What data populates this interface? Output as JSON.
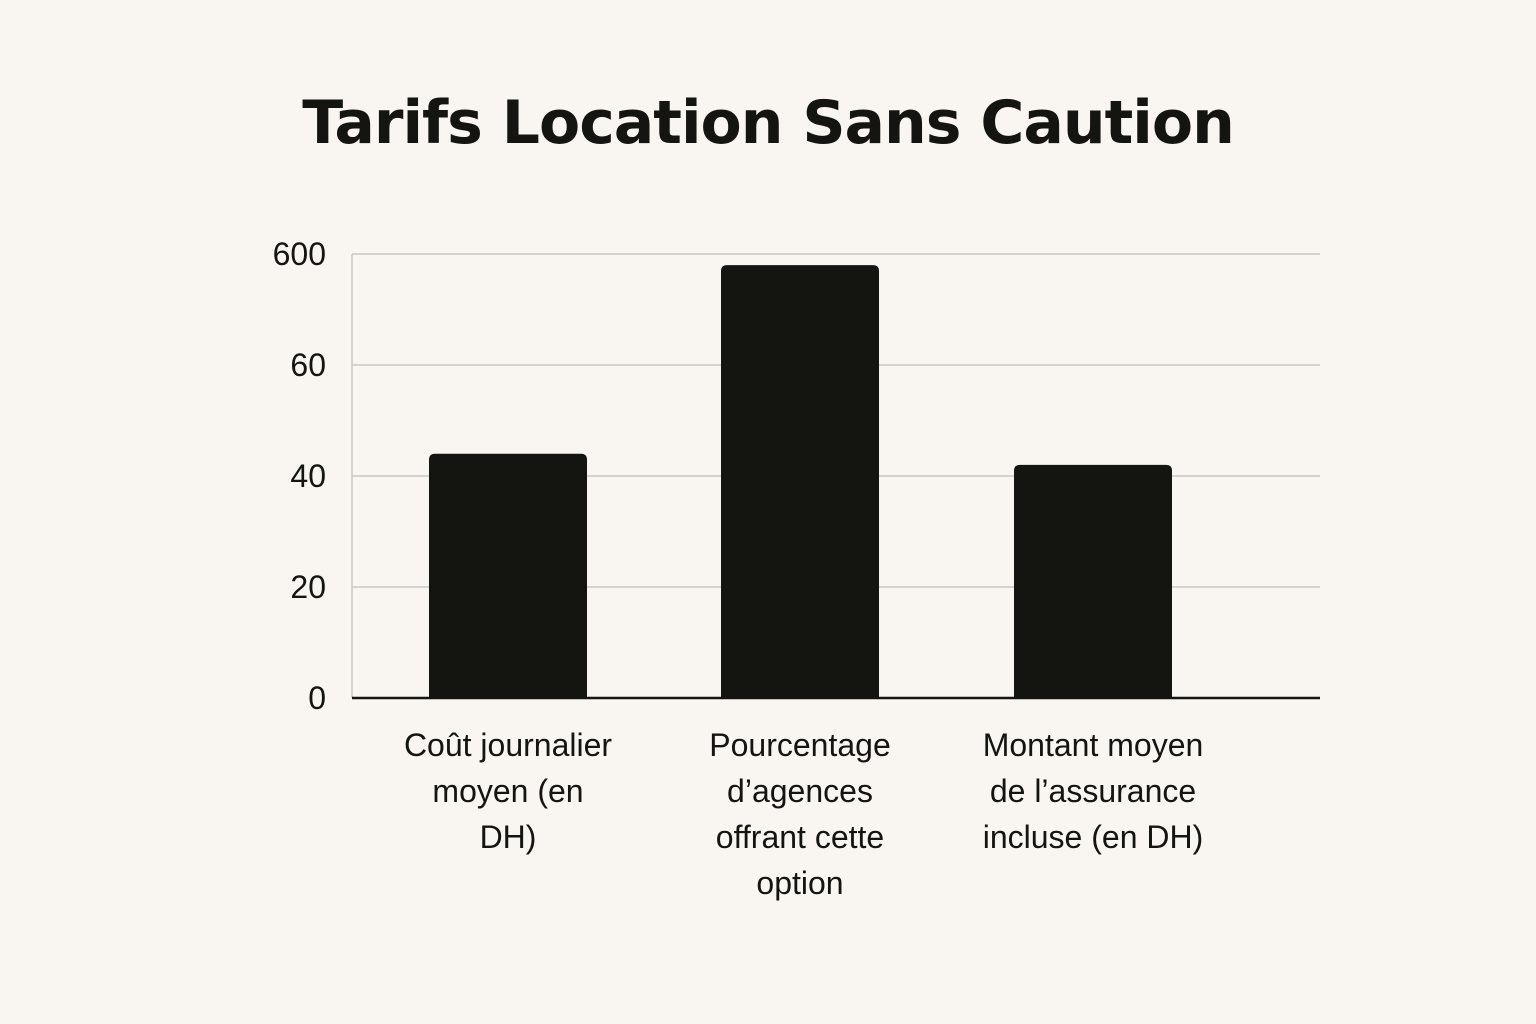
{
  "chart_data": {
    "type": "bar",
    "title": "Tarifs Location Sans Caution",
    "categories": [
      "Coût journalier moyen (en DH)",
      "Pourcentage d’agences offrant cette option",
      "Montant moyen de l’assurance incluse (en DH)"
    ],
    "category_lines": [
      [
        "Coût journalier",
        "moyen (en",
        "DH)"
      ],
      [
        "Pourcentage",
        "d’agences",
        "offrant cette",
        "option"
      ],
      [
        "Montant moyen",
        "de l’assurance",
        "incluse (en DH)"
      ]
    ],
    "yticks": [
      "0",
      "20",
      "40",
      "60",
      "600"
    ],
    "values": [
      44,
      78,
      42
    ],
    "value_note": "axis is non-linear (top tick 600); values read on the visual 0–80 scale",
    "xlabel": "",
    "ylabel": "",
    "grid": true,
    "colors": {
      "bar": "#141410",
      "grid": "#c8c8c4",
      "axis": "#141410",
      "background": "#f9f5f0"
    }
  }
}
